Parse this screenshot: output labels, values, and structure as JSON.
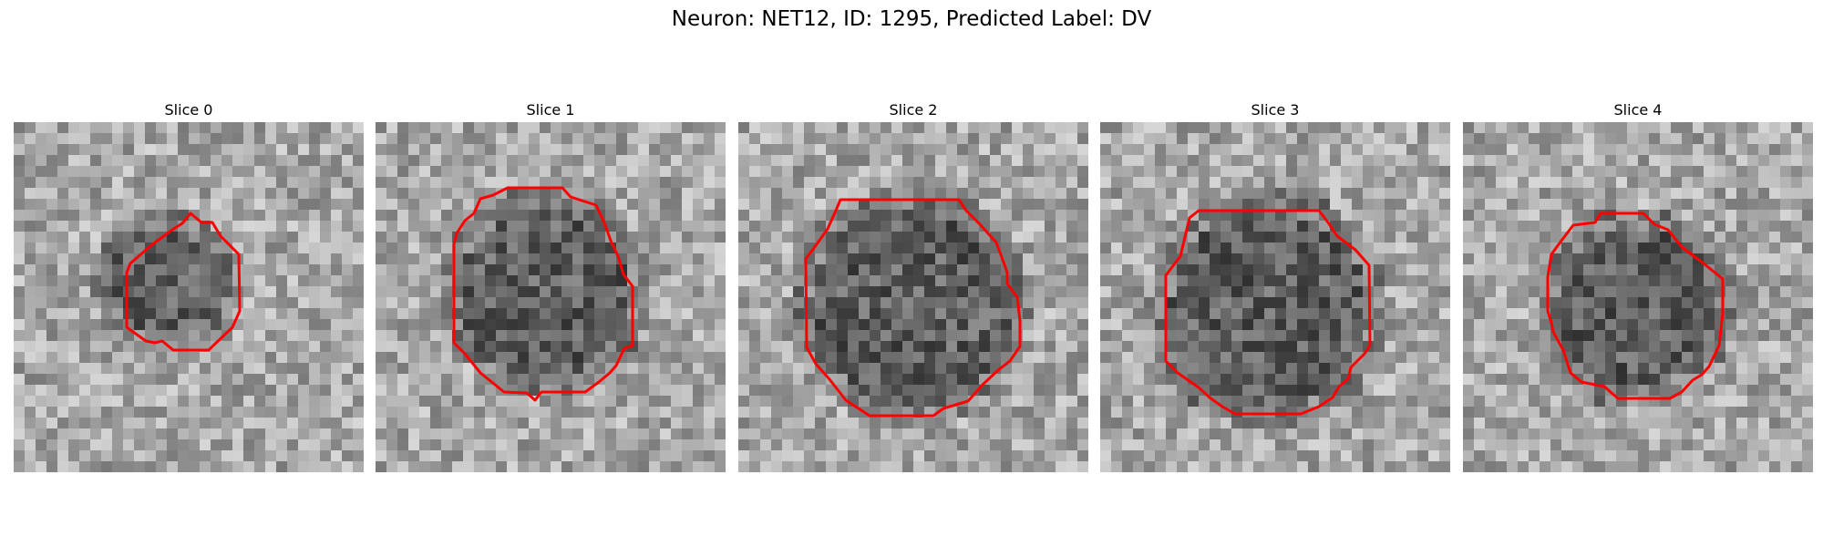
{
  "figure": {
    "title": "Neuron: NET12, ID: 1295, Predicted Label: DV",
    "outline_color": "#ff0000"
  },
  "slices": [
    {
      "title": "Slice 0"
    },
    {
      "title": "Slice 1"
    },
    {
      "title": "Slice 2"
    },
    {
      "title": "Slice 3"
    },
    {
      "title": "Slice 4"
    }
  ]
}
